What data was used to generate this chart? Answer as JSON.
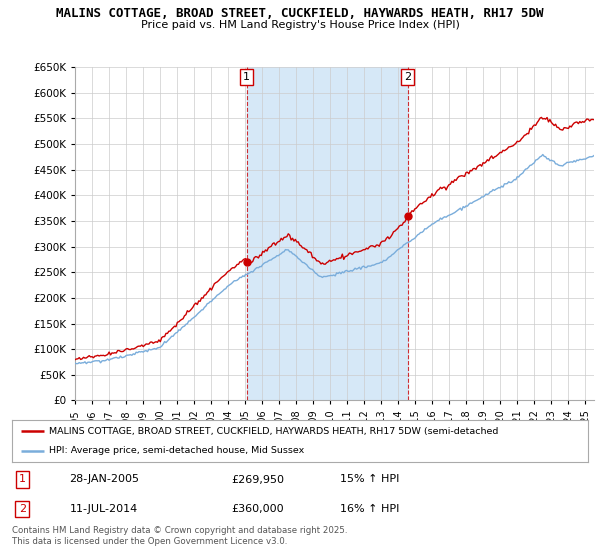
{
  "title": "MALINS COTTAGE, BROAD STREET, CUCKFIELD, HAYWARDS HEATH, RH17 5DW",
  "subtitle": "Price paid vs. HM Land Registry's House Price Index (HPI)",
  "legend_line1": "MALINS COTTAGE, BROAD STREET, CUCKFIELD, HAYWARDS HEATH, RH17 5DW (semi-detached",
  "legend_line2": "HPI: Average price, semi-detached house, Mid Sussex",
  "transaction1_label": "1",
  "transaction1_date": "28-JAN-2005",
  "transaction1_price": "£269,950",
  "transaction1_hpi": "15% ↑ HPI",
  "transaction1_value": 269950,
  "transaction1_year": 2005.08,
  "transaction2_label": "2",
  "transaction2_date": "11-JUL-2014",
  "transaction2_price": "£360,000",
  "transaction2_hpi": "16% ↑ HPI",
  "transaction2_value": 360000,
  "transaction2_year": 2014.54,
  "footer": "Contains HM Land Registry data © Crown copyright and database right 2025.\nThis data is licensed under the Open Government Licence v3.0.",
  "ylim": [
    0,
    650000
  ],
  "yticks": [
    0,
    50000,
    100000,
    150000,
    200000,
    250000,
    300000,
    350000,
    400000,
    450000,
    500000,
    550000,
    600000,
    650000
  ],
  "xlim_start": 1995.0,
  "xlim_end": 2025.5,
  "vline1_x": 2005.08,
  "vline2_x": 2014.54,
  "red_color": "#cc0000",
  "blue_color": "#7aaddb",
  "shade_color": "#d6e8f7",
  "plot_bg": "#ffffff",
  "grid_color": "#cccccc"
}
